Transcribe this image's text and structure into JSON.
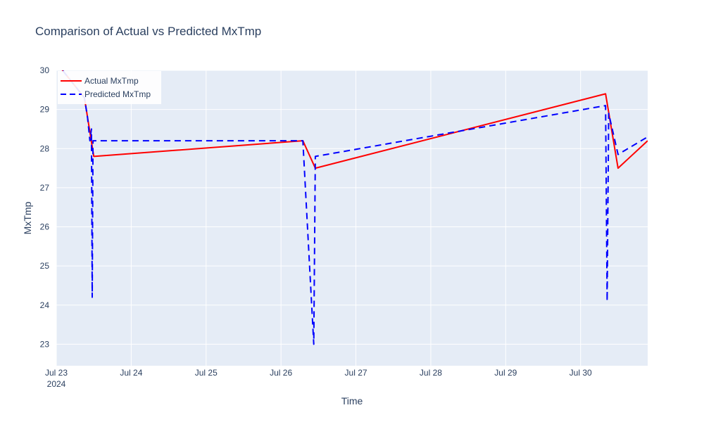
{
  "chart_data": {
    "type": "line",
    "title": "Comparison of Actual vs Predicted MxTmp",
    "xlabel": "Time",
    "ylabel": "MxTmp",
    "x_type": "date",
    "xlim": [
      "2024-07-23 00:00",
      "2024-07-30 21:30"
    ],
    "ylim": [
      22.45,
      30.0
    ],
    "x_ticks": [
      {
        "value": "2024-07-23 00:00",
        "label": "Jul 23",
        "sublabel": "2024"
      },
      {
        "value": "2024-07-24 00:00",
        "label": "Jul 24"
      },
      {
        "value": "2024-07-25 00:00",
        "label": "Jul 25"
      },
      {
        "value": "2024-07-26 00:00",
        "label": "Jul 26"
      },
      {
        "value": "2024-07-27 00:00",
        "label": "Jul 27"
      },
      {
        "value": "2024-07-28 00:00",
        "label": "Jul 28"
      },
      {
        "value": "2024-07-29 00:00",
        "label": "Jul 29"
      },
      {
        "value": "2024-07-30 00:00",
        "label": "Jul 30"
      }
    ],
    "y_ticks": [
      23,
      24,
      25,
      26,
      27,
      28,
      29,
      30
    ],
    "grid": true,
    "legend_position": "top-left",
    "series": [
      {
        "name": "Actual MxTmp",
        "color": "#ff0000",
        "dash": "solid",
        "points": [
          {
            "x": "2024-07-23 00:00",
            "y": 30.2
          },
          {
            "x": "2024-07-23 09:00",
            "y": 29.3
          },
          {
            "x": "2024-07-23 12:00",
            "y": 27.8
          },
          {
            "x": "2024-07-26 07:00",
            "y": 28.2
          },
          {
            "x": "2024-07-26 11:00",
            "y": 27.5
          },
          {
            "x": "2024-07-30 08:00",
            "y": 29.4
          },
          {
            "x": "2024-07-30 12:00",
            "y": 27.5
          },
          {
            "x": "2024-07-30 21:30",
            "y": 28.2
          }
        ]
      },
      {
        "name": "Predicted MxTmp",
        "color": "#0000ff",
        "dash": "dash",
        "points": [
          {
            "x": "2024-07-23 00:00",
            "y": 30.2
          },
          {
            "x": "2024-07-23 09:00",
            "y": 29.3
          },
          {
            "x": "2024-07-23 10:00",
            "y": 28.8
          },
          {
            "x": "2024-07-23 10:45",
            "y": 28.2
          },
          {
            "x": "2024-07-23 11:15",
            "y": 28.5
          },
          {
            "x": "2024-07-23 11:30",
            "y": 24.2
          },
          {
            "x": "2024-07-23 11:45",
            "y": 28.2
          },
          {
            "x": "2024-07-26 07:00",
            "y": 28.2
          },
          {
            "x": "2024-07-26 10:30",
            "y": 23.0
          },
          {
            "x": "2024-07-26 11:00",
            "y": 27.8
          },
          {
            "x": "2024-07-30 08:00",
            "y": 29.1
          },
          {
            "x": "2024-07-30 08:30",
            "y": 24.1
          },
          {
            "x": "2024-07-30 09:00",
            "y": 28.9
          },
          {
            "x": "2024-07-30 12:00",
            "y": 27.85
          },
          {
            "x": "2024-07-30 21:30",
            "y": 28.3
          }
        ]
      }
    ]
  }
}
